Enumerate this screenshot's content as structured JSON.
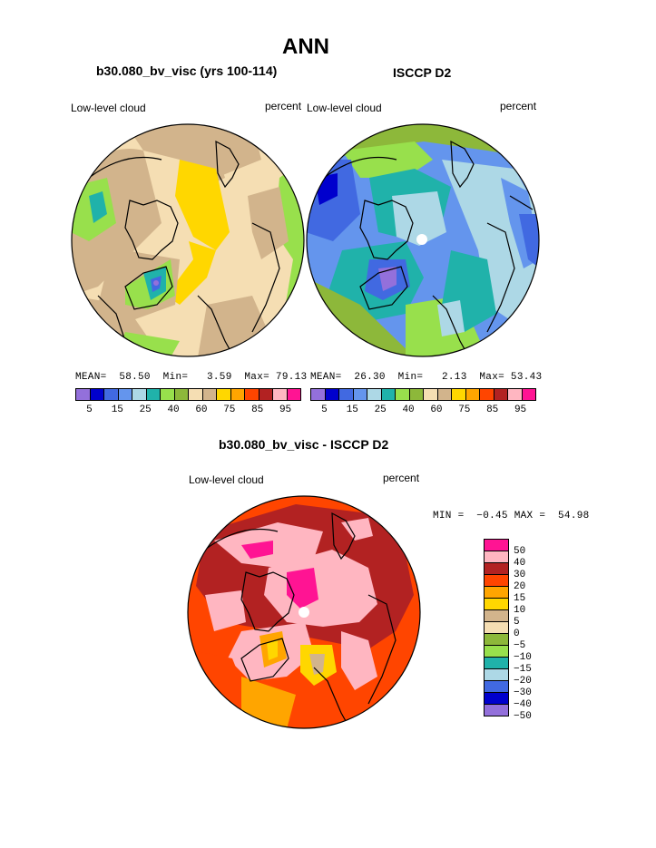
{
  "page_title": "ANN",
  "panel_left": {
    "heading": "b30.080_bv_visc (yrs 100-114)",
    "variable": "Low-level cloud",
    "units": "percent",
    "stats": {
      "mean_label": "MEAN=",
      "mean": "58.50",
      "min_label": "Min=",
      "min": "3.59",
      "max_label": "Max=",
      "max": "79.13"
    }
  },
  "panel_right": {
    "heading": "ISCCP D2",
    "variable": "Low-level cloud",
    "units": "percent",
    "stats": {
      "mean_label": "MEAN=",
      "mean": "26.30",
      "min_label": "Min=",
      "min": "2.13",
      "max_label": "Max=",
      "max": "53.43"
    }
  },
  "panel_diff": {
    "heading": "b30.080_bv_visc - ISCCP D2",
    "variable": "Low-level cloud",
    "units": "percent",
    "minmax": "MIN =  −0.45 MAX =  54.98"
  },
  "colorbar_abs": {
    "colors": [
      "#9370db",
      "#0000cd",
      "#4169e1",
      "#6495ed",
      "#add8e6",
      "#20b2aa",
      "#98e04c",
      "#8db83a",
      "#f5deb3",
      "#d2b48c",
      "#ffd700",
      "#ffa500",
      "#ff4500",
      "#b22222",
      "#ffb6c1",
      "#ff1493"
    ],
    "ticks": [
      "5",
      "15",
      "25",
      "40",
      "60",
      "75",
      "85",
      "95"
    ]
  },
  "colorbar_diff": {
    "colors": [
      "#ff1493",
      "#ffb6c1",
      "#b22222",
      "#ff4500",
      "#ffa500",
      "#ffd700",
      "#d2b48c",
      "#f5deb3",
      "#8db83a",
      "#98e04c",
      "#20b2aa",
      "#add8e6",
      "#4169e1",
      "#0000cd",
      "#9370db"
    ],
    "ticks": [
      "50",
      "40",
      "30",
      "20",
      "15",
      "10",
      "5",
      "0",
      "−5",
      "−10",
      "−15",
      "−20",
      "−30",
      "−40",
      "−50"
    ]
  }
}
